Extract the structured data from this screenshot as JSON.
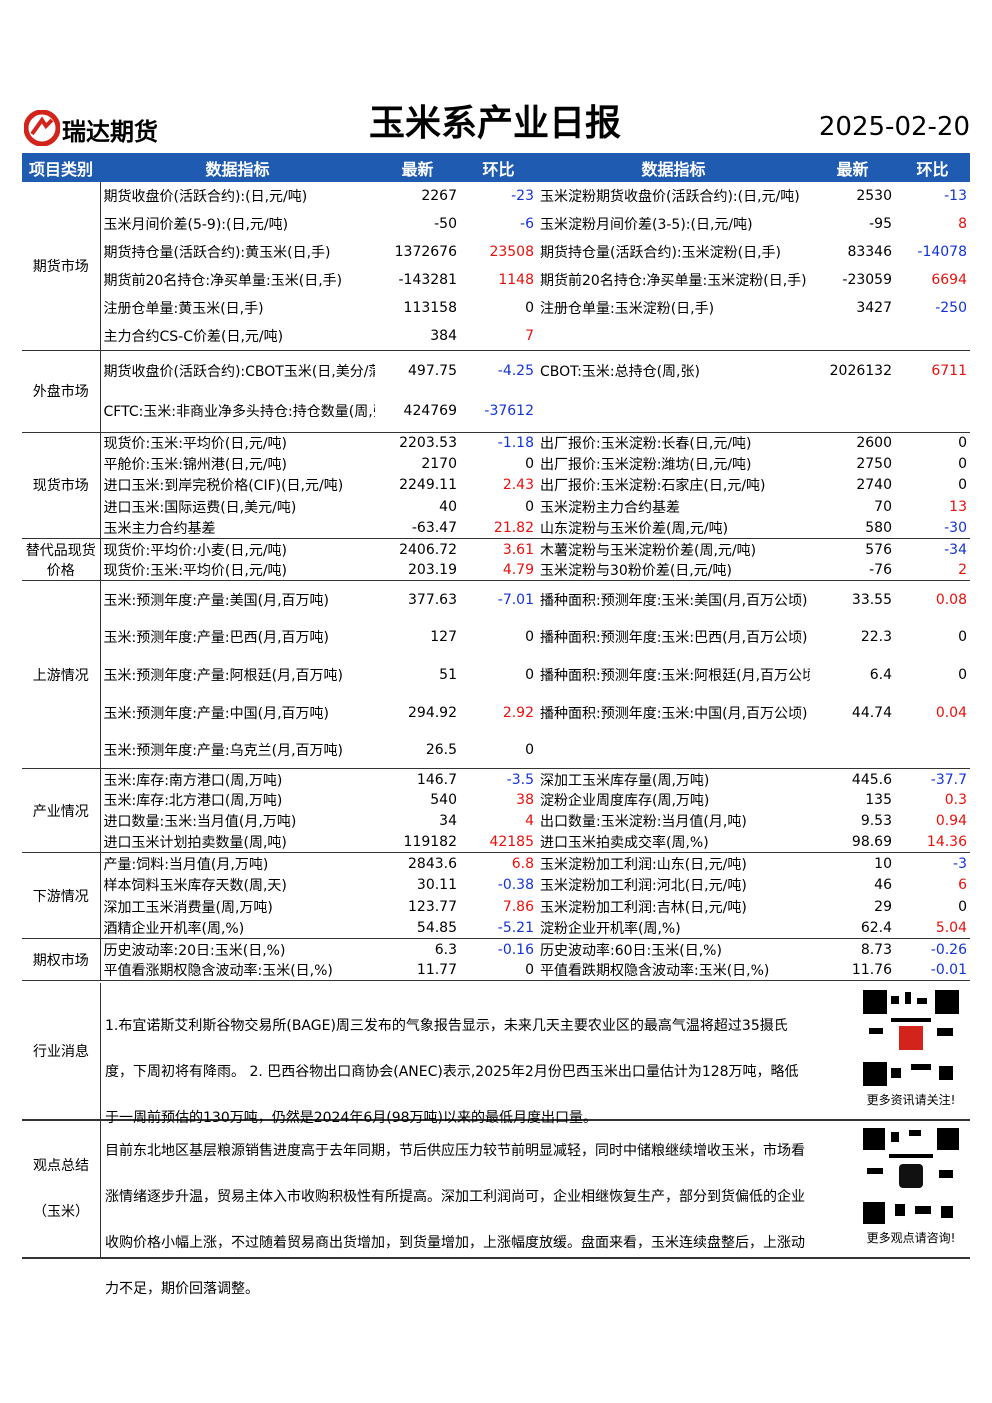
{
  "header": {
    "company": "瑞达期货",
    "title": "玉米系产业日报",
    "date": "2025-02-20"
  },
  "table": {
    "columns": [
      "项目类别",
      "数据指标",
      "最新",
      "环比",
      "数据指标",
      "最新",
      "环比"
    ],
    "sections": [
      {
        "category": "期货市场",
        "rows": [
          {
            "left": {
              "name": "期货收盘价(活跃合约):(日,元/吨)",
              "latest": 2267,
              "change": -23
            },
            "right": {
              "name": "玉米淀粉期货收盘价(活跃合约):(日,元/吨)",
              "latest": 2530,
              "change": -13
            }
          },
          {
            "left": {
              "name": "玉米月间价差(5-9):(日,元/吨)",
              "latest": -50,
              "change": -6
            },
            "right": {
              "name": "玉米淀粉月间价差(3-5):(日,元/吨)",
              "latest": -95,
              "change": 8
            }
          },
          {
            "left": {
              "name": "期货持仓量(活跃合约):黄玉米(日,手)",
              "latest": 1372676,
              "change": 23508
            },
            "right": {
              "name": "期货持仓量(活跃合约):玉米淀粉(日,手)",
              "latest": 83346,
              "change": -14078
            }
          },
          {
            "left": {
              "name": "期货前20名持仓:净买单量:玉米(日,手)",
              "latest": -143281,
              "change": 1148
            },
            "right": {
              "name": "期货前20名持仓:净买单量:玉米淀粉(日,手)",
              "latest": -23059,
              "change": 6694
            }
          },
          {
            "left": {
              "name": "注册仓单量:黄玉米(日,手)",
              "latest": 113158,
              "change": 0
            },
            "right": {
              "name": "注册仓单量:玉米淀粉(日,手)",
              "latest": 3427,
              "change": -250
            }
          },
          {
            "left": {
              "name": "主力合约CS-C价差(日,元/吨)",
              "latest": 384,
              "change": 7
            }
          }
        ]
      },
      {
        "category": "外盘市场",
        "rows": [
          {
            "left": {
              "name": "期货收盘价(活跃合约):CBOT玉米(日,美分/蒲式耳)",
              "latest": 497.75,
              "change": -4.25
            },
            "right": {
              "name": "CBOT:玉米:总持仓(周,张)",
              "latest": 2026132,
              "change": 6711
            }
          },
          {
            "left": {
              "name": "CFTC:玉米:非商业净多头持仓:持仓数量(周,张)",
              "latest": 424769,
              "change": -37612
            }
          }
        ]
      },
      {
        "category": "现货市场",
        "rows": [
          {
            "left": {
              "name": "现货价:玉米:平均价(日,元/吨)",
              "latest": 2203.53,
              "change": -1.18
            },
            "right": {
              "name": "出厂报价:玉米淀粉:长春(日,元/吨)",
              "latest": 2600,
              "change": 0
            }
          },
          {
            "left": {
              "name": "平舱价:玉米:锦州港(日,元/吨)",
              "latest": 2170,
              "change": 0
            },
            "right": {
              "name": "出厂报价:玉米淀粉:潍坊(日,元/吨)",
              "latest": 2750,
              "change": 0
            }
          },
          {
            "left": {
              "name": "进口玉米:到岸完税价格(CIF)(日,元/吨)",
              "latest": 2249.11,
              "change": 2.43
            },
            "right": {
              "name": "出厂报价:玉米淀粉:石家庄(日,元/吨)",
              "latest": 2740,
              "change": 0
            }
          },
          {
            "left": {
              "name": "进口玉米:国际运费(日,美元/吨)",
              "latest": 40,
              "change": 0
            },
            "right": {
              "name": "玉米淀粉主力合约基差",
              "latest": 70,
              "change": 13
            }
          },
          {
            "left": {
              "name": "玉米主力合约基差",
              "latest": -63.47,
              "change": 21.82
            },
            "right": {
              "name": "山东淀粉与玉米价差(周,元/吨)",
              "latest": 580,
              "change": -30
            }
          }
        ]
      },
      {
        "category": "替代品现货价格",
        "rows": [
          {
            "left": {
              "name": "现货价:平均价:小麦(日,元/吨)",
              "latest": 2406.72,
              "change": 3.61
            },
            "right": {
              "name": "木薯淀粉与玉米淀粉价差(周,元/吨)",
              "latest": 576,
              "change": -34
            }
          },
          {
            "left": {
              "name": "现货价:玉米:平均价(日,元/吨)",
              "latest": 203.19,
              "change": 4.79
            },
            "right": {
              "name": "玉米淀粉与30粉价差(日,元/吨)",
              "latest": -76,
              "change": 2
            }
          }
        ]
      },
      {
        "category": "上游情况",
        "rows": [
          {
            "left": {
              "name": "玉米:预测年度:产量:美国(月,百万吨)",
              "latest": 377.63,
              "change": -7.01
            },
            "right": {
              "name": "播种面积:预测年度:玉米:美国(月,百万公顷)",
              "latest": 33.55,
              "change": 0.08
            }
          },
          {
            "left": {
              "name": "玉米:预测年度:产量:巴西(月,百万吨)",
              "latest": 127,
              "change": 0
            },
            "right": {
              "name": "播种面积:预测年度:玉米:巴西(月,百万公顷)",
              "latest": 22.3,
              "change": 0
            }
          },
          {
            "left": {
              "name": "玉米:预测年度:产量:阿根廷(月,百万吨)",
              "latest": 51,
              "change": 0
            },
            "right": {
              "name": "播种面积:预测年度:玉米:阿根廷(月,百万公顷)",
              "latest": 6.4,
              "change": 0
            }
          },
          {
            "left": {
              "name": "玉米:预测年度:产量:中国(月,百万吨)",
              "latest": 294.92,
              "change": 2.92
            },
            "right": {
              "name": "播种面积:预测年度:玉米:中国(月,百万公顷)",
              "latest": 44.74,
              "change": 0.04
            }
          },
          {
            "left": {
              "name": "玉米:预测年度:产量:乌克兰(月,百万吨)",
              "latest": 26.5,
              "change": 0
            }
          }
        ]
      },
      {
        "category": "产业情况",
        "rows": [
          {
            "left": {
              "name": "玉米:库存:南方港口(周,万吨)",
              "latest": 146.7,
              "change": -3.5
            },
            "right": {
              "name": "深加工玉米库存量(周,万吨)",
              "latest": 445.6,
              "change": -37.7
            }
          },
          {
            "left": {
              "name": "玉米:库存:北方港口(周,万吨)",
              "latest": 540,
              "change": 38
            },
            "right": {
              "name": "淀粉企业周度库存(周,万吨)",
              "latest": 135,
              "change": 0.3
            }
          },
          {
            "left": {
              "name": "进口数量:玉米:当月值(月,万吨)",
              "latest": 34,
              "change": 4
            },
            "right": {
              "name": "出口数量:玉米淀粉:当月值(月,吨)",
              "latest": 9.53,
              "change": 0.94
            }
          },
          {
            "left": {
              "name": "进口玉米计划拍卖数量(周,吨)",
              "latest": 119182,
              "change": 42185
            },
            "right": {
              "name": "进口玉米拍卖成交率(周,%)",
              "latest": 98.69,
              "change": 14.36
            }
          }
        ]
      },
      {
        "category": "下游情况",
        "rows": [
          {
            "left": {
              "name": "产量:饲料:当月值(月,万吨)",
              "latest": 2843.6,
              "change": 6.8
            },
            "right": {
              "name": "玉米淀粉加工利润:山东(日,元/吨)",
              "latest": 10,
              "change": -3
            }
          },
          {
            "left": {
              "name": "样本饲料玉米库存天数(周,天)",
              "latest": 30.11,
              "change": -0.38
            },
            "right": {
              "name": "玉米淀粉加工利润:河北(日,元/吨)",
              "latest": 46,
              "change": 6
            }
          },
          {
            "left": {
              "name": "深加工玉米消费量(周,万吨)",
              "latest": 123.77,
              "change": 7.86
            },
            "right": {
              "name": "玉米淀粉加工利润:吉林(日,元/吨)",
              "latest": 29,
              "change": 0
            }
          },
          {
            "left": {
              "name": "酒精企业开机率(周,%)",
              "latest": 54.85,
              "change": -5.21
            },
            "right": {
              "name": "淀粉企业开机率(周,%)",
              "latest": 62.4,
              "change": 5.04
            }
          }
        ]
      },
      {
        "category": "期权市场",
        "rows": [
          {
            "left": {
              "name": "历史波动率:20日:玉米(日,%)",
              "latest": 6.3,
              "change": -0.16
            },
            "right": {
              "name": "历史波动率:60日:玉米(日,%)",
              "latest": 8.73,
              "change": -0.26
            }
          },
          {
            "left": {
              "name": "平值看涨期权隐含波动率:玉米(日,%)",
              "latest": 11.77,
              "change": 0
            },
            "right": {
              "name": "平值看跌期权隐含波动率:玉米(日,%)",
              "latest": 11.76,
              "change": -0.01
            }
          }
        ]
      }
    ]
  },
  "news": {
    "category": "行业消息",
    "text": "1.布宜诺斯艾利斯谷物交易所(BAGE)周三发布的气象报告显示，未来几天主要农业区的最高气温将超过35摄氏度，下周初将有降雨。 2. 巴西谷物出口商协会(ANEC)表示,2025年2月份巴西玉米出口量估计为128万吨，略低于一周前预估的130万吨，仍然是2024年6月(98万吨)以来的最低月度出口量。",
    "qr_caption": "更多资讯请关注!"
  },
  "summary": {
    "category": "观点总结（玉米）",
    "text": "目前东北地区基层粮源销售进度高于去年同期，节后供应压力较节前明显减轻，同时中储粮继续增收玉米，市场看涨情绪逐步升温，贸易主体入市收购积极性有所提高。深加工利润尚可，企业相继恢复生产，部分到货偏低的企业收购价格小幅上涨，不过随着贸易商出货增加，到货量增加，上涨幅度放缓。盘面来看，玉米连续盘整后，上涨动力不足，期价回落调整。",
    "qr_caption": "更多观点请咨询!"
  }
}
